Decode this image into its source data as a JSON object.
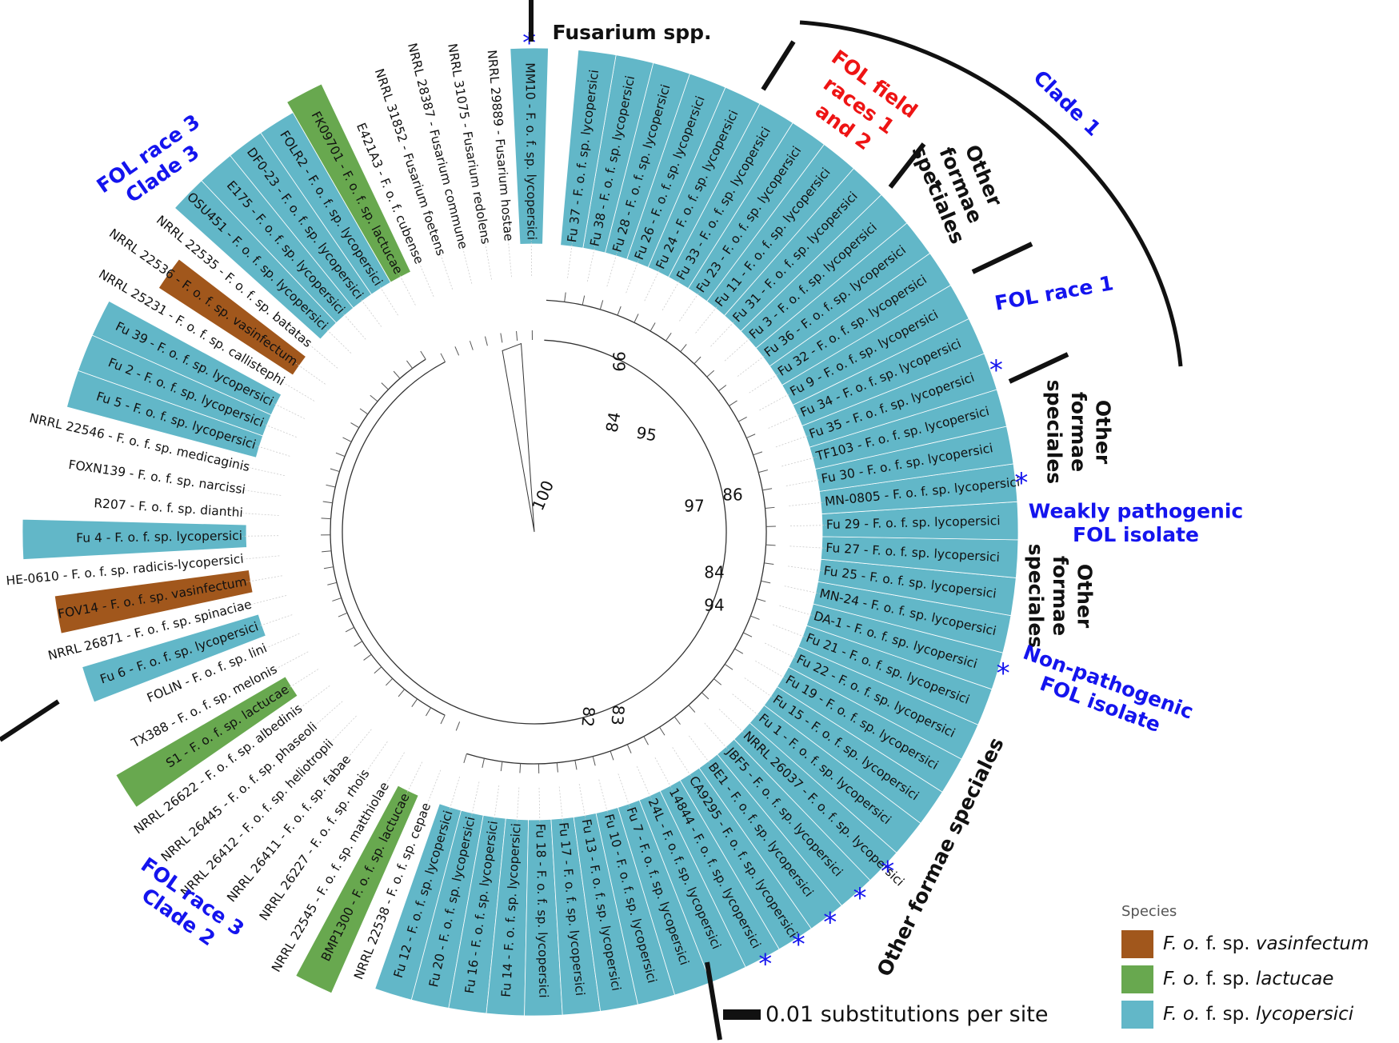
{
  "colors": {
    "lycopersici": "#62b7c8",
    "lactucae": "#68a84f",
    "vasinfectum": "#a1571c",
    "blue_label": "#1414ee",
    "red_label": "#ee1414",
    "black_label": "#111111"
  },
  "leaves": [
    {
      "label": "MM10 - F. o. f. sp. lycopersici",
      "species": "lycopersici",
      "star": true
    },
    {
      "label": "NRRL 29889 - Fusarium hostae",
      "species": null
    },
    {
      "label": "NRRL 31075 - Fusarium redolens",
      "species": null
    },
    {
      "label": "NRRL 28387 - Fusarium commune",
      "species": null
    },
    {
      "label": "NRRL 31852 - Fusarium foetens",
      "species": null
    },
    {
      "label": "E421A3 - F. o. f. cubense",
      "species": null
    },
    {
      "label": "FK09701 - F. o. f. sp. lactucae",
      "species": "lactucae"
    },
    {
      "label": "FOLR2 - F. o. f. sp. lycopersici",
      "species": "lycopersici"
    },
    {
      "label": "DF0-23 - F. o. f. sp. lycopersici",
      "species": "lycopersici"
    },
    {
      "label": "E175 - F. o. f. sp. lycopersici",
      "species": "lycopersici"
    },
    {
      "label": "OSU451 - F. o. f. sp. lycopersici",
      "species": "lycopersici"
    },
    {
      "label": "NRRL 22535 - F. o. f. sp. batatas",
      "species": null
    },
    {
      "label": "NRRL 22536 - F. o. f. sp. vasinfectum",
      "species": "vasinfectum"
    },
    {
      "label": "NRRL 25231 - F. o. f. sp. callistephi",
      "species": null
    },
    {
      "label": "Fu 39 - F. o. f. sp. lycopersici",
      "species": "lycopersici"
    },
    {
      "label": "Fu 2 - F. o. f. sp. lycopersici",
      "species": "lycopersici"
    },
    {
      "label": "Fu 5 - F. o. f. sp. lycopersici",
      "species": "lycopersici"
    },
    {
      "label": "NRRL 22546 - F. o. f. sp. medicaginis",
      "species": null
    },
    {
      "label": "FOXN139 - F. o. f. sp. narcissi",
      "species": null
    },
    {
      "label": "R207 - F. o. f. sp. dianthi",
      "species": null
    },
    {
      "label": "Fu 4 - F. o. f. sp. lycopersici",
      "species": "lycopersici"
    },
    {
      "label": "HE-0610 - F. o. f. sp. radicis-lycopersici",
      "species": null
    },
    {
      "label": "FOV14 - F. o. f. sp. vasinfectum",
      "species": "vasinfectum"
    },
    {
      "label": "NRRL 26871 - F. o. f. sp. spinaciae",
      "species": null
    },
    {
      "label": "Fu 6 - F. o. f. sp. lycopersici",
      "species": "lycopersici"
    },
    {
      "label": "FOLIN - F. o. f. sp. lini",
      "species": null
    },
    {
      "label": "TX388 - F. o. f. sp. melonis",
      "species": null
    },
    {
      "label": "S1 - F. o. f. sp. lactucae",
      "species": "lactucae"
    },
    {
      "label": "NRRL 26622 - F. o. f. sp. albedinis",
      "species": null
    },
    {
      "label": "NRRL 26445 - F. o. f. sp. phaseoli",
      "species": null
    },
    {
      "label": "NRRL 26412 - F. o. f. sp. heliotropii",
      "species": null
    },
    {
      "label": "NRRL 26411 - F. o. f. sp. fabae",
      "species": null
    },
    {
      "label": "NRRL 26227 - F. o. f. sp. rhois",
      "species": null
    },
    {
      "label": "NRRL 22545 - F. o. f. sp. matthiolae",
      "species": null
    },
    {
      "label": "BMP1300 - F. o. f. sp. lactucae",
      "species": "lactucae"
    },
    {
      "label": "NRRL 22538 - F. o. f. sp. cepae",
      "species": null
    },
    {
      "label": "Fu 12 - F. o. f. sp. lycopersici",
      "species": "lycopersici"
    },
    {
      "label": "Fu 20 - F. o. f. sp. lycopersici",
      "species": "lycopersici"
    },
    {
      "label": "Fu 16 - F. o. f. sp. lycopersici",
      "species": "lycopersici"
    },
    {
      "label": "Fu 14 - F. o. f. sp. lycopersici",
      "species": "lycopersici"
    },
    {
      "label": "Fu 18 - F. o. f. sp. lycopersici",
      "species": "lycopersici"
    },
    {
      "label": "Fu 17 - F. o. f. sp. lycopersici",
      "species": "lycopersici"
    },
    {
      "label": "Fu 13 - F. o. f. sp. lycopersici",
      "species": "lycopersici"
    },
    {
      "label": "Fu 10 - F. o. f. sp. lycopersici",
      "species": "lycopersici"
    },
    {
      "label": "Fu 7 - F. o. f. sp. lycopersici",
      "species": "lycopersici"
    },
    {
      "label": "24L - F. o. f. sp. lycopersici",
      "species": "lycopersici"
    },
    {
      "label": "14844 - F. o. f. sp. lycopersici",
      "species": "lycopersici",
      "star": true
    },
    {
      "label": "CA9295 - F. o. f. sp. lycopersici",
      "species": "lycopersici",
      "star": true
    },
    {
      "label": "BE1 - F. o. f. sp. lycopersici",
      "species": "lycopersici",
      "star": true
    },
    {
      "label": "JBF5 - F. o. f. sp. lycopersici",
      "species": "lycopersici",
      "star": true
    },
    {
      "label": "NRRL 26037 - F. o. f. sp. lycopersici",
      "species": "lycopersici",
      "star": true
    },
    {
      "label": "Fu 1 - F. o. f. sp. lycopersici",
      "species": "lycopersici"
    },
    {
      "label": "Fu 15 - F. o. f. sp. lycopersici",
      "species": "lycopersici"
    },
    {
      "label": "Fu 19 - F. o. f. sp. lycopersici",
      "species": "lycopersici"
    },
    {
      "label": "Fu 22 - F. o. f. sp. lycopersici",
      "species": "lycopersici"
    },
    {
      "label": "Fu 21 - F. o. f. sp. lycopersici",
      "species": "lycopersici"
    },
    {
      "label": "DA-1 - F. o. f. sp. lycopersici",
      "species": "lycopersici",
      "star": true
    },
    {
      "label": "MN-24 - F. o. f. sp. lycopersici",
      "species": "lycopersici"
    },
    {
      "label": "Fu 25 - F. o. f. sp. lycopersici",
      "species": "lycopersici"
    },
    {
      "label": "Fu 27 - F. o. f. sp. lycopersici",
      "species": "lycopersici"
    },
    {
      "label": "Fu 29 - F. o. f. sp. lycopersici",
      "species": "lycopersici"
    },
    {
      "label": "MN-0805 - F. o. f. sp. lycopersici",
      "species": "lycopersici",
      "star": true
    },
    {
      "label": "Fu 30 - F. o. f. sp. lycopersici",
      "species": "lycopersici"
    },
    {
      "label": "TF103 - F. o. f. sp. lycopersici",
      "species": "lycopersici"
    },
    {
      "label": "Fu 35 - F. o. f. sp. lycopersici",
      "species": "lycopersici",
      "star": true
    },
    {
      "label": "Fu 34 - F. o. f. sp. lycopersici",
      "species": "lycopersici"
    },
    {
      "label": "Fu 9 - F. o. f. sp. lycopersici",
      "species": "lycopersici"
    },
    {
      "label": "Fu 32 - F. o. f. sp. lycopersici",
      "species": "lycopersici"
    },
    {
      "label": "Fu 36 - F. o. f. sp. lycopersici",
      "species": "lycopersici"
    },
    {
      "label": "Fu 3 - F. o. f. sp. lycopersici",
      "species": "lycopersici"
    },
    {
      "label": "Fu 31 - F. o. f. sp. lycopersici",
      "species": "lycopersici"
    },
    {
      "label": "Fu 11 - F. o. f. sp. lycopersici",
      "species": "lycopersici"
    },
    {
      "label": "Fu 23 - F. o. f. sp. lycopersici",
      "species": "lycopersici"
    },
    {
      "label": "Fu 33 - F. o. f. sp. lycopersici",
      "species": "lycopersici"
    },
    {
      "label": "Fu 24 - F. o. f. sp. lycopersici",
      "species": "lycopersici"
    },
    {
      "label": "Fu 26 - F. o. f. sp. lycopersici",
      "species": "lycopersici"
    },
    {
      "label": "Fu 28 - F. o. f. sp. lycopersici",
      "species": "lycopersici"
    },
    {
      "label": "Fu 38 - F. o. f. sp. lycopersici",
      "species": "lycopersici"
    },
    {
      "label": "Fu 37 - F. o. f. sp. lycopersici",
      "species": "lycopersici"
    }
  ],
  "bootstrap": [
    "99",
    "95",
    "84",
    "100",
    "97",
    "86",
    "84",
    "94",
    "83",
    "82"
  ],
  "group_labels": [
    {
      "lines": [
        "Fusarium spp."
      ],
      "color": "black"
    },
    {
      "lines": [
        "FOL field",
        "races 1",
        "and 2"
      ],
      "color": "red"
    },
    {
      "lines": [
        "Clade 1"
      ],
      "color": "blue"
    },
    {
      "lines": [
        "Other",
        "formae",
        "speciales"
      ],
      "color": "black"
    },
    {
      "lines": [
        "FOL race 1"
      ],
      "color": "blue"
    },
    {
      "lines": [
        "Other",
        "formae",
        "speciales"
      ],
      "color": "black"
    },
    {
      "lines": [
        "Weakly pathogenic",
        "FOL isolate"
      ],
      "color": "blue"
    },
    {
      "lines": [
        "Other",
        "formae",
        "speciales"
      ],
      "color": "black"
    },
    {
      "lines": [
        "Non-pathogenic",
        "FOL isolate"
      ],
      "color": "blue"
    },
    {
      "lines": [
        "Other formae speciales"
      ],
      "color": "black"
    },
    {
      "lines": [
        "FOL race 3",
        "Clade 2"
      ],
      "color": "blue"
    },
    {
      "lines": [
        "FOL race 3",
        "Clade 3"
      ],
      "color": "blue"
    }
  ],
  "star_symbol": "*",
  "scale_label": "0.01 substitutions per site",
  "legend": {
    "title": "Species",
    "items": [
      {
        "prefix": "F. o.",
        "mid": " f. sp. ",
        "name": "vasinfectum",
        "color": "#a1571c"
      },
      {
        "prefix": "F. o.",
        "mid": " f. sp. ",
        "name": "lactucae",
        "color": "#68a84f"
      },
      {
        "prefix": "F. o.",
        "mid": " f. sp. ",
        "name": "lycopersici",
        "color": "#62b7c8"
      }
    ]
  }
}
